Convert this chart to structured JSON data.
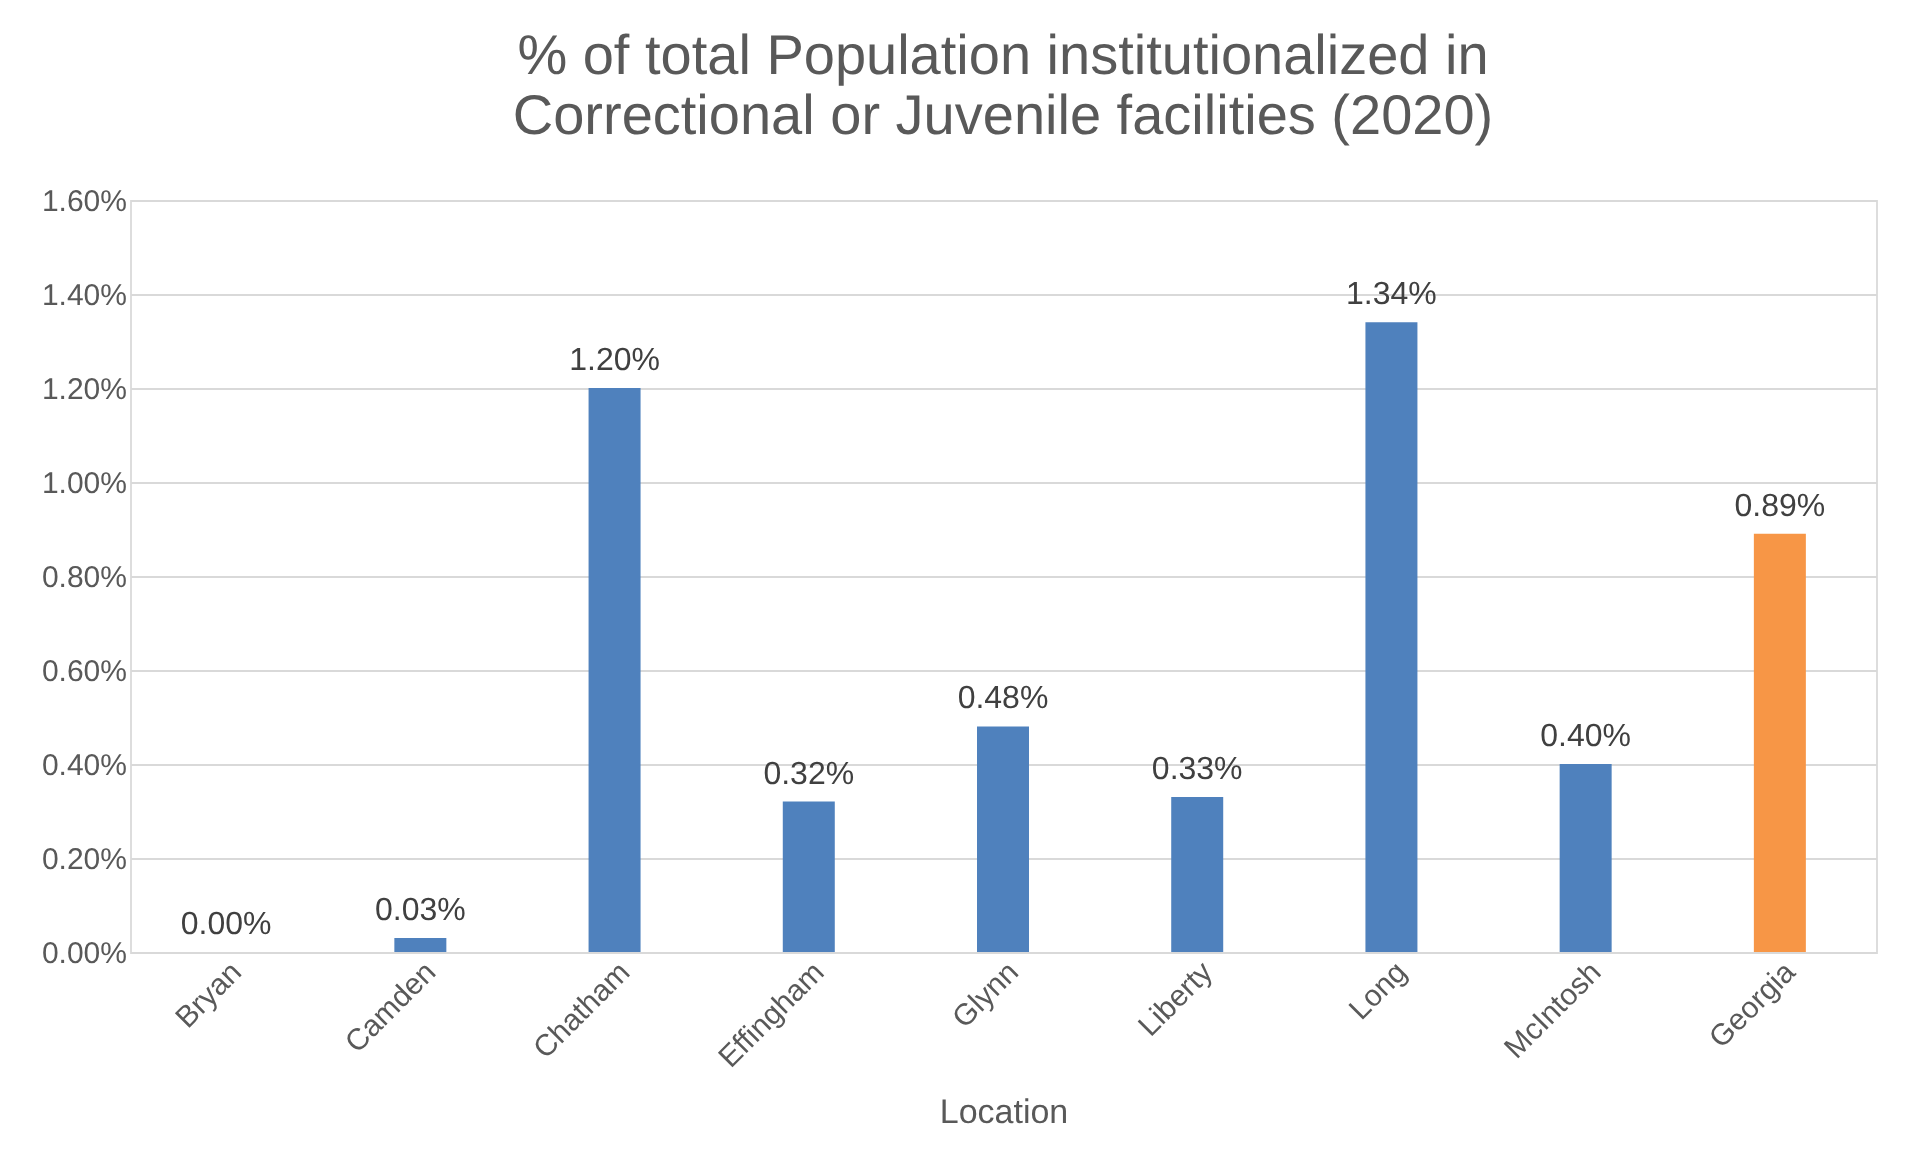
{
  "chart_data": {
    "type": "bar",
    "title": [
      "% of total Population institutionalized in",
      "Correctional or Juvenile facilities (2020)"
    ],
    "xlabel": "Location",
    "categories": [
      "Bryan",
      "Camden",
      "Chatham",
      "Effingham",
      "Glynn",
      "Liberty",
      "Long",
      "McIntosh",
      "Georgia"
    ],
    "values": [
      0.0,
      0.03,
      1.2,
      0.32,
      0.48,
      0.33,
      1.34,
      0.4,
      0.89
    ],
    "colors": [
      "#4f81bd",
      "#4f81bd",
      "#4f81bd",
      "#4f81bd",
      "#4f81bd",
      "#4f81bd",
      "#4f81bd",
      "#4f81bd",
      "#f79646"
    ],
    "value_labels": [
      "0.00%",
      "0.03%",
      "1.20%",
      "0.32%",
      "0.48%",
      "0.33%",
      "1.34%",
      "0.40%",
      "0.89%"
    ],
    "ylim": [
      0,
      1.6
    ],
    "yticks": [
      {
        "value": 0,
        "label": "0.00%"
      },
      {
        "value": 0.2,
        "label": "0.20%"
      },
      {
        "value": 0.4,
        "label": "0.40%"
      },
      {
        "value": 0.6,
        "label": "0.60%"
      },
      {
        "value": 0.8,
        "label": "0.80%"
      },
      {
        "value": 1.0,
        "label": "1.00%"
      },
      {
        "value": 1.2,
        "label": "1.20%"
      },
      {
        "value": 1.4,
        "label": "1.40%"
      },
      {
        "value": 1.6,
        "label": "1.60%"
      }
    ],
    "grid": "y"
  }
}
